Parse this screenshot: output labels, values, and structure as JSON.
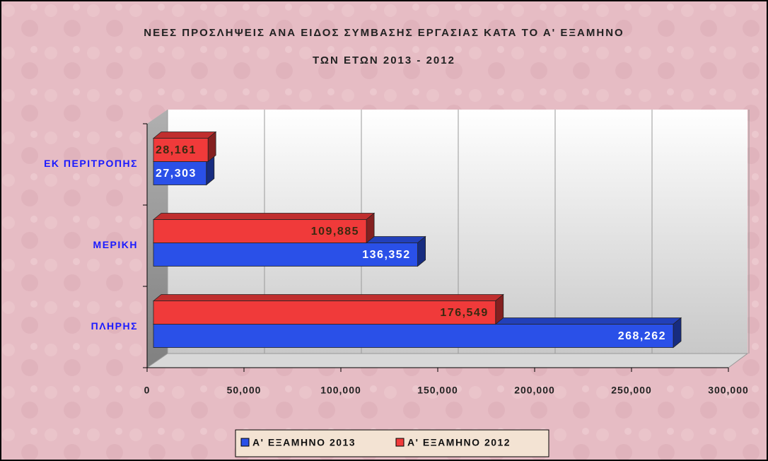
{
  "chart_data": {
    "type": "bar",
    "orientation": "horizontal",
    "title": [
      "ΝΕΕΣ ΠΡΟΣΛΗΨΕΙΣ ΑΝΑ ΕΙΔΟΣ ΣΥΜΒΑΣΗΣ ΕΡΓΑΣΙΑΣ ΚΑΤΑ ΤΟ Α' ΕΞΑΜΗΝΟ",
      "ΤΩΝ ΕΤΩΝ 2013 - 2012"
    ],
    "categories": [
      "ΕΚ ΠΕΡΙΤΡΟΠΗΣ",
      "ΜΕΡΙΚΗ",
      "ΠΛΗΡΗΣ"
    ],
    "series": [
      {
        "name": "Α' ΕΞΑΜΗΝΟ 2013",
        "color": "#2a50e8",
        "values": [
          27303,
          136352,
          268262
        ],
        "value_labels": [
          "27,303",
          "136,352",
          "268,262"
        ]
      },
      {
        "name": "Α' ΕΞΑΜΗΝΟ 2012",
        "color": "#f03a3a",
        "values": [
          28161,
          109885,
          176549
        ],
        "value_labels": [
          "28,161",
          "109,885",
          "176,549"
        ]
      }
    ],
    "xlim": [
      0,
      300000
    ],
    "xticks": [
      0,
      {
        "value": 50000,
        "label": "50,000"
      },
      {
        "value": 100000,
        "label": "100,000"
      },
      {
        "value": 150000,
        "label": "150,000"
      },
      {
        "value": 200000,
        "label": "200,000"
      },
      {
        "value": 250000,
        "label": "250,000"
      },
      {
        "value": 300000,
        "label": "300,000"
      }
    ],
    "grid": true,
    "legend": "bottom"
  }
}
